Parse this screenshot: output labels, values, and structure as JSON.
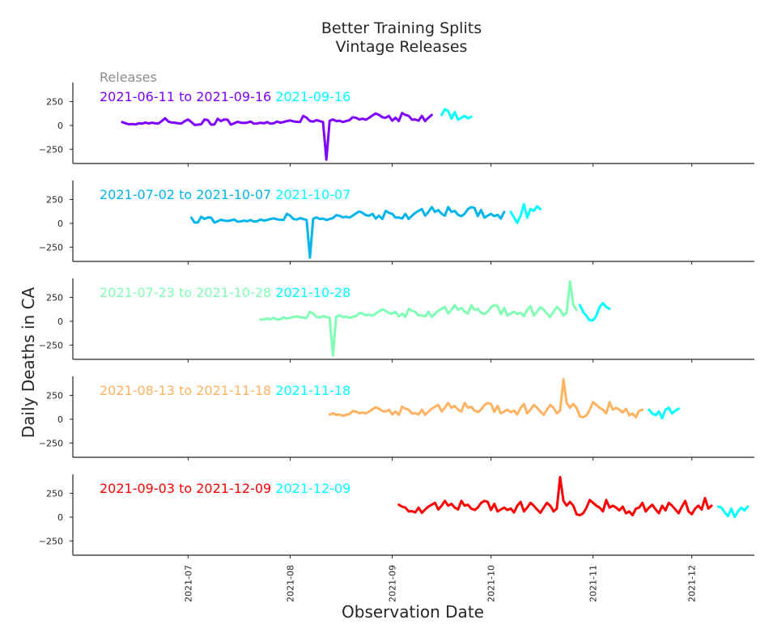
{
  "chart_data": {
    "type": "line",
    "title_line1": "Better Training Splits",
    "title_line2": "Vintage Releases",
    "xlabel": "Observation Date",
    "ylabel": "Daily Deaths in CA",
    "legend_heading": "Releases",
    "y_ticks": [
      250,
      0,
      -250
    ],
    "x_ticks": [
      "2021-07",
      "2021-08",
      "2021-09",
      "2021-10",
      "2021-11",
      "2021-12"
    ],
    "x_tick_dates": [
      "2021-07-01",
      "2021-08-01",
      "2021-09-01",
      "2021-10-01",
      "2021-11-01",
      "2021-12-01"
    ],
    "xlim": [
      "2021-05-27",
      "2021-12-20"
    ],
    "ylim": [
      -400,
      450
    ],
    "forecast_color": "#00ffff",
    "panels": [
      {
        "train_label": "2021-06-11 to 2021-09-16",
        "release_label": "2021-09-16",
        "train_color": "#7f00ff",
        "train_start": "2021-06-11",
        "train_values": [
          35,
          22,
          12,
          15,
          10,
          22,
          18,
          30,
          20,
          28,
          22,
          20,
          45,
          75,
          40,
          30,
          28,
          22,
          20,
          45,
          62,
          35,
          5,
          8,
          12,
          62,
          55,
          8,
          10,
          70,
          45,
          62,
          60,
          8,
          22,
          38,
          28,
          25,
          30,
          40,
          18,
          20,
          28,
          22,
          35,
          18,
          22,
          40,
          28,
          35,
          45,
          52,
          42,
          38,
          35,
          100,
          80,
          45,
          40,
          55,
          45,
          35,
          -360,
          48,
          62,
          45,
          50,
          35,
          45,
          55,
          85,
          80,
          62,
          70,
          60,
          80,
          105,
          125,
          110,
          85,
          80,
          100,
          50,
          80,
          45,
          130,
          110,
          100,
          60,
          62,
          50,
          100,
          45,
          80,
          110
        ],
        "forecast_start": "2021-09-16",
        "forecast_values": [
          110,
          170,
          150,
          70,
          140,
          60,
          80,
          100,
          75,
          90
        ]
      },
      {
        "train_label": "2021-07-02 to 2021-10-07",
        "release_label": "2021-10-07",
        "train_color": "#00b5eb",
        "train_start": "2021-07-02",
        "train_values": [
          60,
          8,
          10,
          70,
          45,
          62,
          60,
          8,
          22,
          38,
          28,
          25,
          30,
          40,
          18,
          20,
          28,
          22,
          35,
          18,
          22,
          40,
          28,
          35,
          45,
          52,
          42,
          38,
          35,
          100,
          80,
          45,
          40,
          55,
          45,
          35,
          -360,
          48,
          62,
          45,
          50,
          35,
          45,
          55,
          85,
          80,
          62,
          70,
          60,
          80,
          105,
          125,
          110,
          85,
          80,
          100,
          50,
          80,
          45,
          130,
          110,
          100,
          60,
          62,
          50,
          100,
          45,
          80,
          110,
          130,
          150,
          80,
          120,
          170,
          120,
          140,
          100,
          80,
          170,
          120,
          130,
          90,
          75,
          100,
          150,
          170,
          160,
          75,
          140,
          60,
          80,
          100,
          75,
          90,
          50,
          120
        ],
        "forecast_start": "2021-10-07",
        "forecast_values": [
          120,
          60,
          5,
          80,
          200,
          60,
          150,
          130,
          180,
          150
        ]
      },
      {
        "train_label": "2021-07-23 to 2021-10-28",
        "release_label": "2021-10-28",
        "train_color": "#80ffb4",
        "train_start": "2021-07-23",
        "train_values": [
          18,
          20,
          28,
          22,
          35,
          18,
          22,
          40,
          28,
          35,
          45,
          52,
          42,
          38,
          35,
          100,
          80,
          45,
          40,
          55,
          45,
          35,
          -360,
          48,
          62,
          45,
          50,
          35,
          45,
          55,
          85,
          80,
          62,
          70,
          60,
          80,
          105,
          125,
          110,
          85,
          80,
          100,
          50,
          80,
          45,
          130,
          110,
          100,
          60,
          62,
          50,
          100,
          45,
          80,
          110,
          130,
          150,
          80,
          120,
          170,
          120,
          140,
          100,
          80,
          170,
          120,
          130,
          90,
          75,
          100,
          150,
          170,
          160,
          75,
          140,
          60,
          80,
          100,
          75,
          90,
          50,
          120,
          160,
          60,
          100,
          150,
          120,
          80,
          45,
          100,
          150,
          120,
          60,
          90,
          420,
          170,
          120
        ],
        "forecast_start": "2021-10-28",
        "forecast_values": [
          170,
          100,
          55,
          10,
          10,
          60,
          150,
          190,
          150,
          130
        ]
      },
      {
        "train_label": "2021-08-13 to 2021-11-18",
        "release_label": "2021-11-18",
        "train_color": "#ffb360",
        "train_start": "2021-08-13",
        "train_values": [
          48,
          62,
          45,
          50,
          35,
          45,
          55,
          85,
          80,
          62,
          70,
          60,
          80,
          105,
          125,
          110,
          85,
          80,
          100,
          50,
          80,
          45,
          130,
          110,
          100,
          60,
          62,
          50,
          100,
          45,
          80,
          110,
          130,
          150,
          80,
          120,
          170,
          120,
          140,
          100,
          80,
          170,
          120,
          130,
          90,
          75,
          100,
          150,
          170,
          160,
          75,
          140,
          60,
          80,
          100,
          75,
          90,
          50,
          120,
          160,
          60,
          100,
          150,
          120,
          80,
          45,
          100,
          150,
          120,
          60,
          90,
          420,
          170,
          120,
          160,
          120,
          30,
          20,
          40,
          100,
          180,
          150,
          120,
          100,
          60,
          180,
          100,
          120,
          100,
          70,
          110,
          40,
          60,
          20,
          90,
          100
        ],
        "forecast_start": "2021-11-18",
        "forecast_values": [
          100,
          60,
          40,
          80,
          10,
          100,
          120,
          60,
          90,
          110
        ]
      },
      {
        "train_label": "2021-09-03 to 2021-12-09",
        "release_label": "2021-12-09",
        "train_color": "#ff0000",
        "train_start": "2021-09-03",
        "train_values": [
          130,
          110,
          100,
          60,
          62,
          50,
          100,
          45,
          80,
          110,
          130,
          150,
          80,
          120,
          170,
          120,
          140,
          100,
          80,
          170,
          120,
          130,
          90,
          75,
          100,
          150,
          170,
          160,
          75,
          140,
          60,
          80,
          100,
          75,
          90,
          50,
          120,
          160,
          60,
          100,
          150,
          120,
          80,
          45,
          100,
          150,
          120,
          60,
          90,
          420,
          170,
          120,
          160,
          120,
          30,
          20,
          40,
          100,
          180,
          150,
          120,
          100,
          60,
          180,
          100,
          120,
          100,
          70,
          110,
          40,
          60,
          20,
          90,
          100,
          150,
          60,
          100,
          130,
          80,
          40,
          120,
          70,
          150,
          120,
          80,
          40,
          110,
          170,
          60,
          30,
          90,
          120,
          80,
          200,
          90,
          120
        ],
        "forecast_start": "2021-12-09",
        "forecast_values": [
          110,
          100,
          50,
          10,
          90,
          0,
          60,
          100,
          70,
          110
        ]
      }
    ]
  }
}
